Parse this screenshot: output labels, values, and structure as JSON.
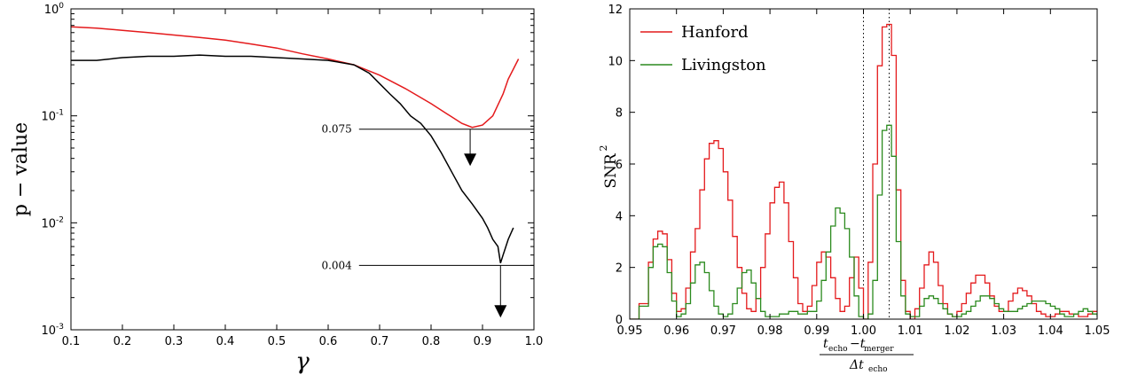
{
  "chart_data": [
    {
      "type": "line",
      "xlabel": "γ",
      "ylabel": "p − value",
      "xlim": [
        0.1,
        1.0
      ],
      "ylim": [
        0.001,
        1.0
      ],
      "yscale": "log",
      "x_ticks": [
        "0.1",
        "0.2",
        "0.3",
        "0.4",
        "0.5",
        "0.6",
        "0.7",
        "0.8",
        "0.9",
        "1.0"
      ],
      "y_ticks": [
        {
          "base": "10",
          "exp": "-3",
          "value": 0.001
        },
        {
          "base": "10",
          "exp": "-2",
          "value": 0.01
        },
        {
          "base": "10",
          "exp": "-1",
          "value": 0.1
        },
        {
          "base": "10",
          "exp": "0",
          "value": 1.0
        }
      ],
      "series": [
        {
          "color": "#e41a1c",
          "x": [
            0.1,
            0.15,
            0.2,
            0.25,
            0.3,
            0.35,
            0.4,
            0.45,
            0.5,
            0.55,
            0.6,
            0.65,
            0.7,
            0.75,
            0.8,
            0.83,
            0.86,
            0.88,
            0.9,
            0.92,
            0.94,
            0.95,
            0.97
          ],
          "y": [
            0.68,
            0.66,
            0.63,
            0.6,
            0.57,
            0.54,
            0.51,
            0.47,
            0.43,
            0.38,
            0.34,
            0.3,
            0.24,
            0.18,
            0.13,
            0.105,
            0.085,
            0.078,
            0.082,
            0.1,
            0.16,
            0.22,
            0.34
          ]
        },
        {
          "color": "#000000",
          "x": [
            0.1,
            0.15,
            0.2,
            0.25,
            0.3,
            0.35,
            0.4,
            0.45,
            0.5,
            0.55,
            0.6,
            0.65,
            0.68,
            0.7,
            0.72,
            0.74,
            0.76,
            0.78,
            0.8,
            0.82,
            0.84,
            0.86,
            0.88,
            0.9,
            0.91,
            0.92,
            0.93,
            0.935,
            0.94,
            0.95,
            0.96
          ],
          "y": [
            0.33,
            0.33,
            0.35,
            0.36,
            0.36,
            0.37,
            0.36,
            0.36,
            0.35,
            0.34,
            0.33,
            0.3,
            0.25,
            0.2,
            0.16,
            0.13,
            0.1,
            0.085,
            0.065,
            0.045,
            0.03,
            0.02,
            0.015,
            0.011,
            0.009,
            0.007,
            0.006,
            0.0042,
            0.005,
            0.007,
            0.009
          ]
        }
      ],
      "annotations": [
        {
          "label": "0.075",
          "y": 0.075,
          "x_start": 0.66,
          "x_end": 1.0,
          "arrow_x": 0.876,
          "arrow_from": 0.075,
          "arrow_to": 0.034
        },
        {
          "label": "0.004",
          "y": 0.004,
          "x_start": 0.66,
          "x_end": 1.0,
          "arrow_x": 0.935,
          "arrow_from": 0.004,
          "arrow_to": 0.0013
        }
      ]
    },
    {
      "type": "line",
      "xlabel_num": "t",
      "xlabel_num_sub1": "echo",
      "xlabel_minus": "−t",
      "xlabel_num_sub2": "merger",
      "xlabel_den": "Δt",
      "xlabel_den_sub": "echo",
      "ylabel": "SNR",
      "ylabel_sup": "2",
      "xlim": [
        0.95,
        1.05
      ],
      "ylim": [
        0,
        12
      ],
      "x_ticks": [
        "0.95",
        "0.96",
        "0.97",
        "0.98",
        "0.99",
        "1.00",
        "1.01",
        "1.02",
        "1.03",
        "1.04",
        "1.05"
      ],
      "y_ticks": [
        "0",
        "2",
        "4",
        "6",
        "8",
        "10",
        "12"
      ],
      "vlines": [
        1.0,
        1.0055
      ],
      "legend_position": "top-left",
      "series": [
        {
          "name": "Hanford",
          "color": "#e41a1c",
          "x": [
            0.95,
            0.952,
            0.954,
            0.955,
            0.956,
            0.957,
            0.958,
            0.959,
            0.96,
            0.961,
            0.962,
            0.963,
            0.964,
            0.965,
            0.966,
            0.967,
            0.968,
            0.969,
            0.97,
            0.971,
            0.972,
            0.973,
            0.974,
            0.975,
            0.976,
            0.977,
            0.978,
            0.979,
            0.98,
            0.981,
            0.982,
            0.983,
            0.984,
            0.985,
            0.986,
            0.987,
            0.988,
            0.989,
            0.99,
            0.991,
            0.992,
            0.993,
            0.994,
            0.995,
            0.996,
            0.997,
            0.998,
            0.999,
            1.0,
            1.001,
            1.002,
            1.003,
            1.004,
            1.005,
            1.006,
            1.007,
            1.008,
            1.009,
            1.01,
            1.011,
            1.012,
            1.013,
            1.014,
            1.015,
            1.016,
            1.017,
            1.018,
            1.019,
            1.02,
            1.021,
            1.022,
            1.023,
            1.024,
            1.025,
            1.026,
            1.027,
            1.028,
            1.029,
            1.03,
            1.031,
            1.032,
            1.033,
            1.034,
            1.035,
            1.036,
            1.037,
            1.038,
            1.039,
            1.04,
            1.041,
            1.042,
            1.043,
            1.044,
            1.045,
            1.046,
            1.047,
            1.048,
            1.049,
            1.05
          ],
          "y": [
            0.0,
            0.6,
            2.2,
            3.1,
            3.4,
            3.3,
            2.3,
            1.0,
            0.3,
            0.4,
            1.2,
            2.6,
            3.5,
            5.0,
            6.2,
            6.8,
            6.9,
            6.6,
            5.7,
            4.6,
            3.2,
            2.0,
            1.0,
            0.4,
            0.3,
            0.8,
            2.0,
            3.3,
            4.5,
            5.1,
            5.3,
            4.5,
            3.0,
            1.6,
            0.6,
            0.3,
            0.5,
            1.3,
            2.2,
            2.6,
            2.4,
            1.6,
            0.8,
            0.3,
            0.5,
            1.6,
            2.4,
            1.2,
            0.0,
            2.2,
            6.0,
            9.8,
            11.3,
            11.4,
            10.2,
            5.0,
            1.5,
            0.3,
            0.0,
            0.4,
            1.2,
            2.1,
            2.6,
            2.2,
            1.3,
            0.6,
            0.2,
            0.1,
            0.3,
            0.6,
            1.0,
            1.4,
            1.7,
            1.7,
            1.4,
            0.9,
            0.5,
            0.3,
            0.3,
            0.7,
            1.0,
            1.2,
            1.1,
            0.9,
            0.6,
            0.3,
            0.2,
            0.1,
            0.1,
            0.2,
            0.3,
            0.3,
            0.2,
            0.2,
            0.1,
            0.1,
            0.2,
            0.3,
            0.3
          ]
        },
        {
          "name": "Livingston",
          "color": "#2b8a1e",
          "x": [
            0.95,
            0.952,
            0.954,
            0.955,
            0.956,
            0.957,
            0.958,
            0.959,
            0.96,
            0.961,
            0.962,
            0.963,
            0.964,
            0.965,
            0.966,
            0.967,
            0.968,
            0.969,
            0.97,
            0.971,
            0.972,
            0.973,
            0.974,
            0.975,
            0.976,
            0.977,
            0.978,
            0.979,
            0.98,
            0.982,
            0.984,
            0.986,
            0.988,
            0.99,
            0.991,
            0.992,
            0.993,
            0.994,
            0.995,
            0.996,
            0.997,
            0.998,
            0.999,
            1.0,
            1.001,
            1.002,
            1.003,
            1.004,
            1.005,
            1.006,
            1.007,
            1.008,
            1.009,
            1.01,
            1.011,
            1.012,
            1.013,
            1.014,
            1.015,
            1.016,
            1.017,
            1.018,
            1.019,
            1.02,
            1.021,
            1.022,
            1.023,
            1.024,
            1.025,
            1.026,
            1.027,
            1.028,
            1.029,
            1.03,
            1.031,
            1.032,
            1.033,
            1.034,
            1.035,
            1.036,
            1.037,
            1.038,
            1.039,
            1.04,
            1.041,
            1.042,
            1.043,
            1.044,
            1.045,
            1.046,
            1.047,
            1.048,
            1.049,
            1.05
          ],
          "y": [
            0.0,
            0.5,
            2.0,
            2.8,
            2.9,
            2.8,
            1.8,
            0.7,
            0.1,
            0.2,
            0.6,
            1.4,
            2.1,
            2.2,
            1.8,
            1.1,
            0.5,
            0.2,
            0.1,
            0.2,
            0.6,
            1.2,
            1.8,
            1.9,
            1.4,
            0.8,
            0.3,
            0.1,
            0.1,
            0.2,
            0.3,
            0.2,
            0.3,
            0.7,
            1.5,
            2.6,
            3.6,
            4.3,
            4.1,
            3.5,
            2.4,
            0.9,
            0.1,
            0.0,
            0.2,
            1.5,
            4.8,
            7.3,
            7.5,
            6.3,
            3.0,
            0.9,
            0.2,
            0.1,
            0.1,
            0.5,
            0.8,
            0.9,
            0.8,
            0.6,
            0.4,
            0.2,
            0.1,
            0.1,
            0.2,
            0.3,
            0.5,
            0.7,
            0.9,
            0.9,
            0.8,
            0.6,
            0.4,
            0.3,
            0.3,
            0.3,
            0.4,
            0.5,
            0.6,
            0.7,
            0.7,
            0.7,
            0.6,
            0.5,
            0.4,
            0.2,
            0.1,
            0.1,
            0.2,
            0.3,
            0.4,
            0.3,
            0.2,
            0.1
          ]
        }
      ]
    }
  ]
}
